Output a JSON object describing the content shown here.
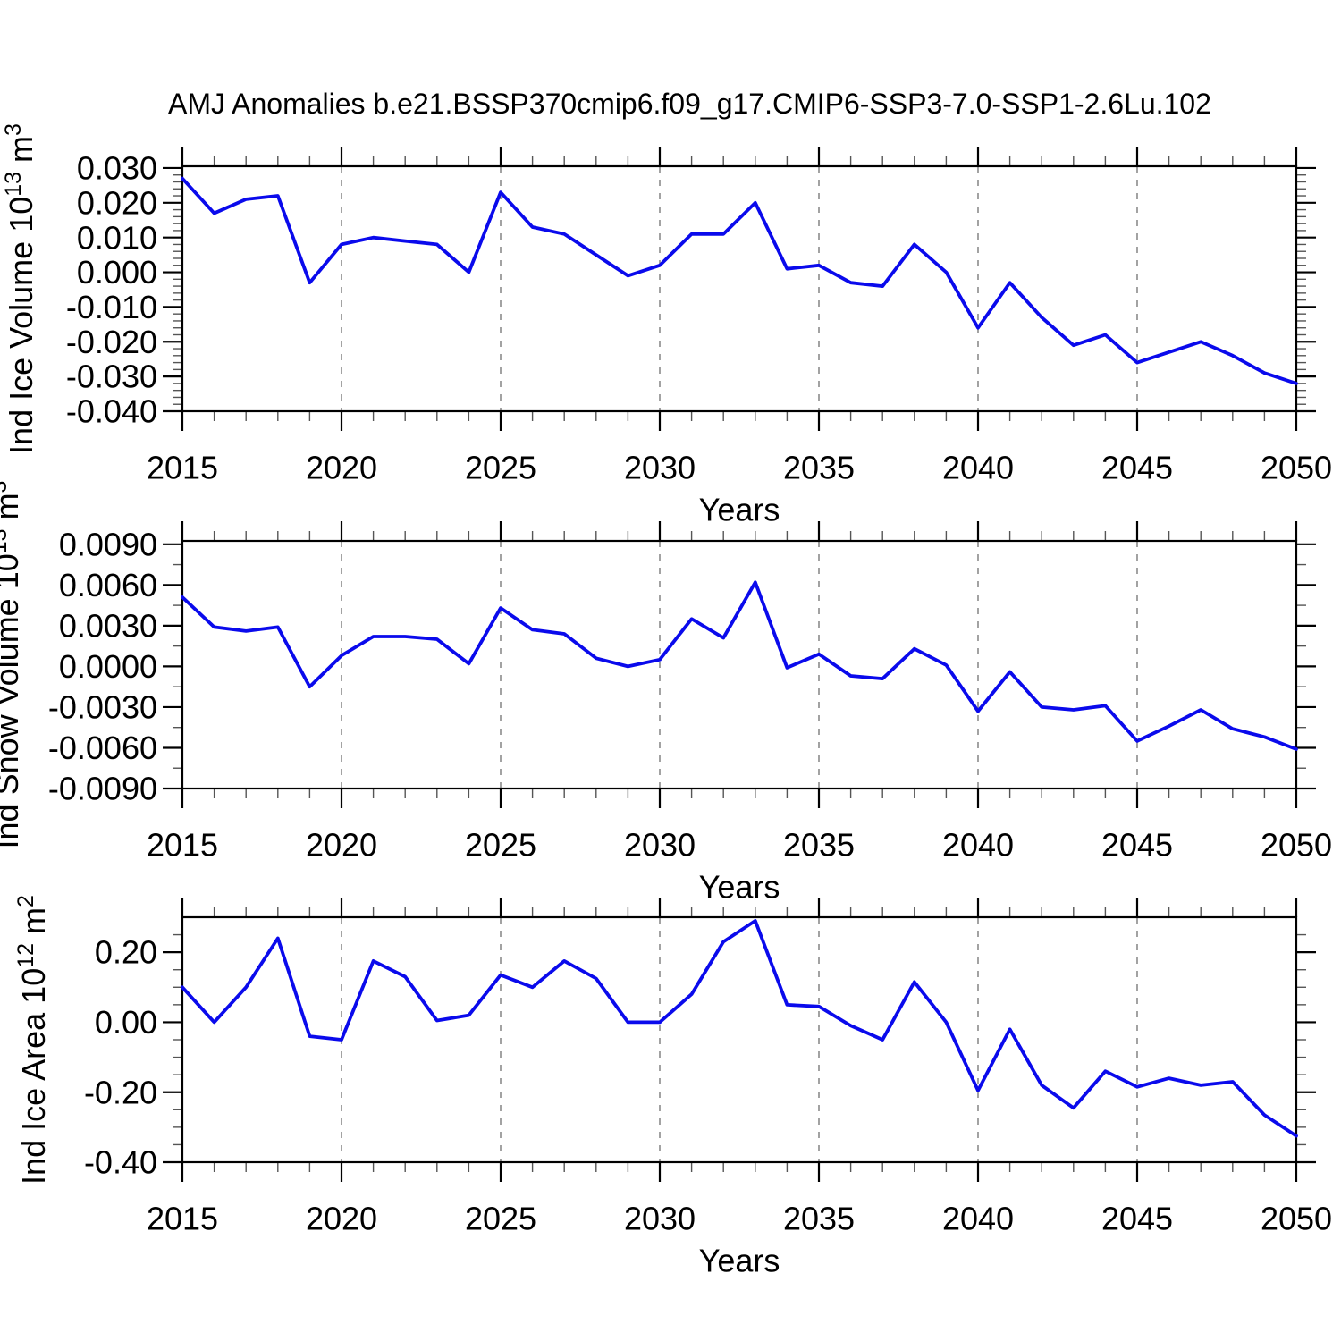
{
  "title": "AMJ Anomalies b.e21.BSSP370cmip6.f09_g17.CMIP6-SSP3-7.0-SSP1-2.6Lu.102",
  "colors": {
    "line": "#0a0aec",
    "grid": "#8c8c8c",
    "axis": "#000000",
    "minor_tick": "#555555",
    "background": "#ffffff"
  },
  "chart_data": [
    {
      "type": "line",
      "name": "ice-volume",
      "ylabel": "Ind Ice Volume 10^13 m^3",
      "ylabel_parts": [
        {
          "t": "Ind Ice Volume 10"
        },
        {
          "t": "13",
          "sup": true
        },
        {
          "t": " m"
        },
        {
          "t": "3",
          "sup": true
        }
      ],
      "xlabel": "Years",
      "x": [
        2015,
        2016,
        2017,
        2018,
        2019,
        2020,
        2021,
        2022,
        2023,
        2024,
        2025,
        2026,
        2027,
        2028,
        2029,
        2030,
        2031,
        2032,
        2033,
        2034,
        2035,
        2036,
        2037,
        2038,
        2039,
        2040,
        2041,
        2042,
        2043,
        2044,
        2045,
        2046,
        2047,
        2048,
        2049,
        2050
      ],
      "values": [
        0.027,
        0.017,
        0.021,
        0.022,
        -0.003,
        0.008,
        0.01,
        0.009,
        0.008,
        0.0,
        0.023,
        0.013,
        0.011,
        0.005,
        -0.001,
        0.002,
        0.011,
        0.011,
        0.02,
        0.001,
        0.002,
        -0.003,
        -0.004,
        0.008,
        0.0,
        -0.016,
        -0.003,
        -0.013,
        -0.021,
        -0.018,
        -0.026,
        -0.023,
        -0.02,
        -0.024,
        -0.029,
        -0.032
      ],
      "ylim": [
        -0.04,
        0.0305
      ],
      "ytick_values": [
        0.03,
        0.02,
        0.01,
        0.0,
        -0.01,
        -0.02,
        -0.03,
        -0.04
      ],
      "ytick_labels": [
        "0.030",
        "0.020",
        "0.010",
        "0.000",
        "-0.010",
        "-0.020",
        "-0.030",
        "-0.040"
      ],
      "y_minor_step": 0.002,
      "xtick_labeled": [
        2015,
        2020,
        2025,
        2030,
        2035,
        2040,
        2045,
        2050
      ],
      "grid_years": [
        2020,
        2025,
        2030,
        2035,
        2040,
        2045
      ],
      "xlim": [
        2015,
        2050
      ]
    },
    {
      "type": "line",
      "name": "snow-volume",
      "ylabel": "Ind Snow Volume 10^13 m^3",
      "ylabel_parts": [
        {
          "t": "Ind Snow Volume 10"
        },
        {
          "t": "13",
          "sup": true
        },
        {
          "t": " m"
        },
        {
          "t": "3",
          "sup": true
        }
      ],
      "xlabel": "Years",
      "x": [
        2015,
        2016,
        2017,
        2018,
        2019,
        2020,
        2021,
        2022,
        2023,
        2024,
        2025,
        2026,
        2027,
        2028,
        2029,
        2030,
        2031,
        2032,
        2033,
        2034,
        2035,
        2036,
        2037,
        2038,
        2039,
        2040,
        2041,
        2042,
        2043,
        2044,
        2045,
        2046,
        2047,
        2048,
        2049,
        2050
      ],
      "values": [
        0.0051,
        0.0029,
        0.0026,
        0.0029,
        -0.0015,
        0.0008,
        0.0022,
        0.0022,
        0.002,
        0.0002,
        0.0043,
        0.0027,
        0.0024,
        0.0006,
        0.0,
        0.0005,
        0.0035,
        0.0021,
        0.0062,
        -0.0001,
        0.0009,
        -0.0007,
        -0.0009,
        0.0013,
        0.0001,
        -0.0033,
        -0.0004,
        -0.003,
        -0.0032,
        -0.0029,
        -0.0055,
        -0.0044,
        -0.0032,
        -0.0046,
        -0.0052,
        -0.0061
      ],
      "ylim": [
        -0.009,
        0.00925
      ],
      "ytick_values": [
        0.009,
        0.006,
        0.003,
        0.0,
        -0.003,
        -0.006,
        -0.009
      ],
      "ytick_labels": [
        "0.0090",
        "0.0060",
        "0.0030",
        "0.0000",
        "-0.0030",
        "-0.0060",
        "-0.0090"
      ],
      "y_minor_step": 0.0015,
      "xtick_labeled": [
        2015,
        2020,
        2025,
        2030,
        2035,
        2040,
        2045,
        2050
      ],
      "grid_years": [
        2020,
        2025,
        2030,
        2035,
        2040,
        2045
      ],
      "xlim": [
        2015,
        2050
      ]
    },
    {
      "type": "line",
      "name": "ice-area",
      "ylabel": "Ind Ice Area 10^12 m^2",
      "ylabel_parts": [
        {
          "t": "Ind Ice Area 10"
        },
        {
          "t": "12",
          "sup": true
        },
        {
          "t": " m"
        },
        {
          "t": "2",
          "sup": true
        }
      ],
      "xlabel": "Years",
      "x": [
        2015,
        2016,
        2017,
        2018,
        2019,
        2020,
        2021,
        2022,
        2023,
        2024,
        2025,
        2026,
        2027,
        2028,
        2029,
        2030,
        2031,
        2032,
        2033,
        2034,
        2035,
        2036,
        2037,
        2038,
        2039,
        2040,
        2041,
        2042,
        2043,
        2044,
        2045,
        2046,
        2047,
        2048,
        2049,
        2050
      ],
      "values": [
        0.1,
        0.0,
        0.1,
        0.24,
        -0.04,
        -0.05,
        0.175,
        0.13,
        0.005,
        0.02,
        0.135,
        0.1,
        0.175,
        0.125,
        0.0,
        0.0,
        0.08,
        0.23,
        0.29,
        0.05,
        0.045,
        -0.01,
        -0.05,
        0.115,
        0.0,
        -0.195,
        -0.02,
        -0.18,
        -0.245,
        -0.14,
        -0.185,
        -0.16,
        -0.18,
        -0.17,
        -0.265,
        -0.325
      ],
      "ylim": [
        -0.4,
        0.3
      ],
      "ytick_values": [
        0.2,
        0.0,
        -0.2,
        -0.4
      ],
      "ytick_labels": [
        "0.20",
        "0.00",
        "-0.20",
        "-0.40"
      ],
      "y_minor_step": 0.05,
      "xtick_labeled": [
        2015,
        2020,
        2025,
        2030,
        2035,
        2040,
        2045,
        2050
      ],
      "grid_years": [
        2020,
        2025,
        2030,
        2035,
        2040,
        2045
      ],
      "xlim": [
        2015,
        2050
      ]
    }
  ]
}
